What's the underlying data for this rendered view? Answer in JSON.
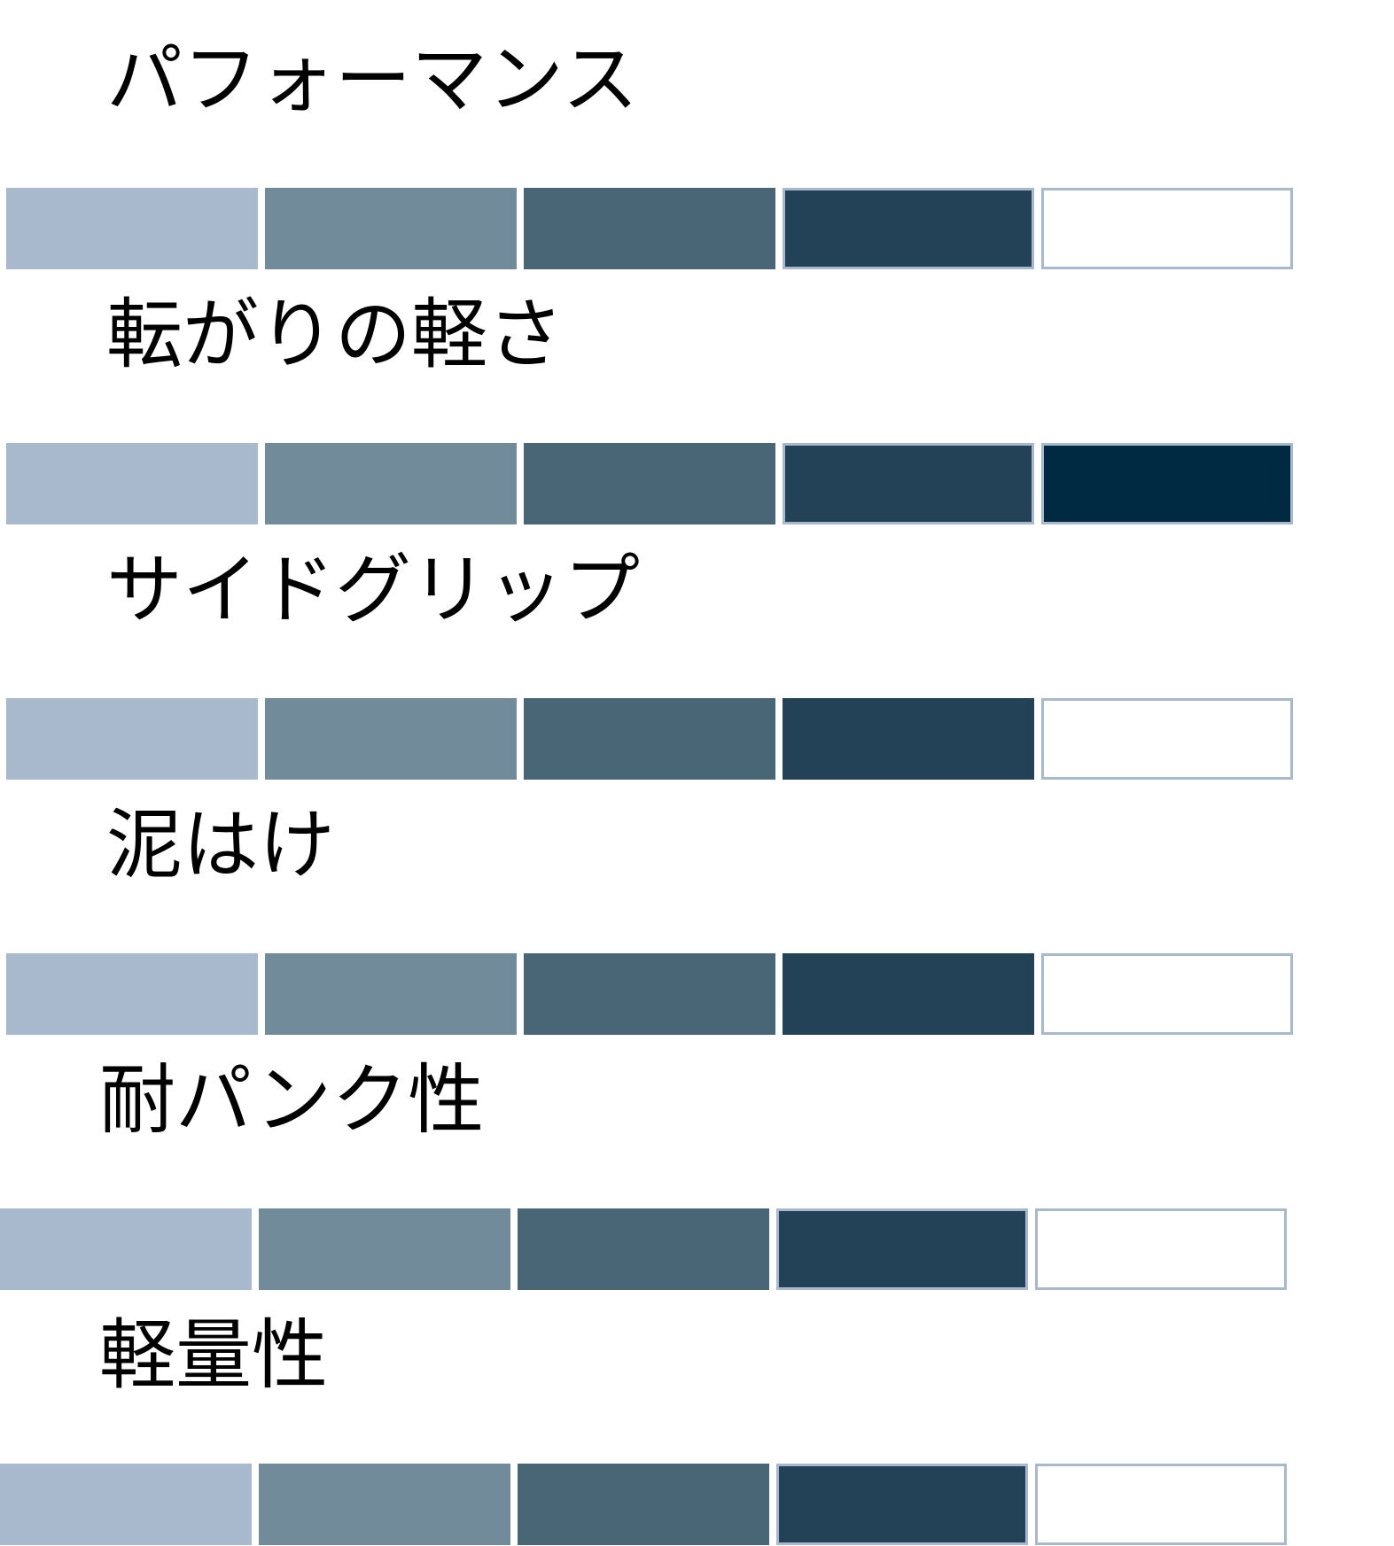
{
  "ratings": [
    {
      "label": "パフォーマンス",
      "level": 4,
      "max": 5
    },
    {
      "label": "転がりの軽さ",
      "level": 5,
      "max": 5
    },
    {
      "label": "サイドグリップ",
      "level": 4,
      "max": 5
    },
    {
      "label": "泥はけ",
      "level": 4,
      "max": 5
    },
    {
      "label": "耐パンク性",
      "level": 4,
      "max": 5
    },
    {
      "label": "軽量性",
      "level": 4,
      "max": 5
    }
  ],
  "segment_colors": [
    "#a9b9cd",
    "#718b9b",
    "#486675",
    "#234257",
    "#002a41"
  ],
  "empty_color": "#ffffff",
  "outline_color": "#a9b9cd"
}
